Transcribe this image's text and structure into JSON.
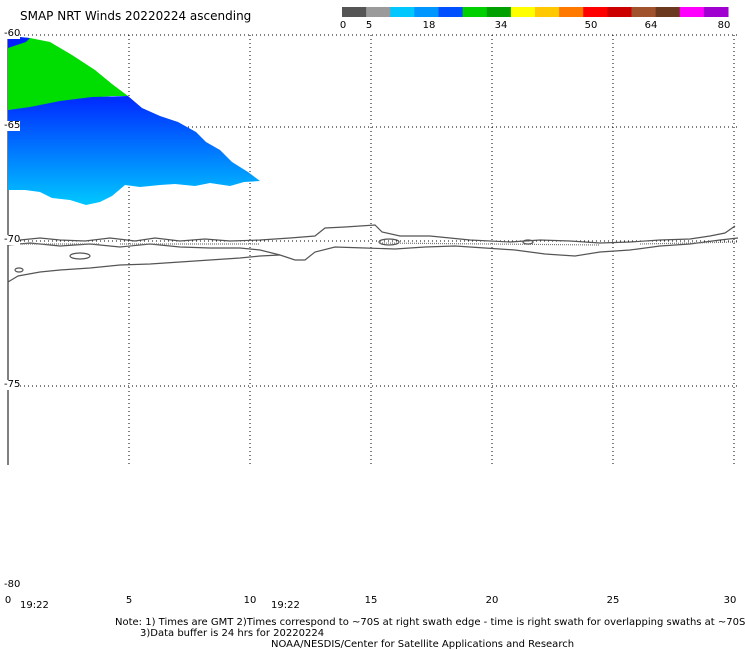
{
  "title": "SMAP NRT Winds 20220224 ascending",
  "color_scale": {
    "ticks": [
      "0",
      "5",
      "18",
      "34",
      "50",
      "64",
      "80"
    ],
    "colors": [
      "#555555",
      "#9a9a9a",
      "#00c8ff",
      "#0096ff",
      "#0050ff",
      "#00d000",
      "#00a000",
      "#ffff00",
      "#ffc800",
      "#ff7800",
      "#ff0000",
      "#cc0000",
      "#a0522d",
      "#6b3a1e",
      "#ff00ff",
      "#a000d0"
    ]
  },
  "map": {
    "lat_labels": [
      "-60",
      "-65",
      "-70",
      "-75",
      "-80"
    ],
    "lon_labels": [
      "0",
      "5",
      "10",
      "15",
      "20",
      "25",
      "30"
    ],
    "swath_times": [
      "19:22",
      "19:22"
    ],
    "swath_colors": {
      "green": "#00dd00",
      "blue": "#0020ff",
      "light_blue": "#00b8ff"
    }
  },
  "notes": {
    "line1": "Note: 1) Times are GMT 2)Times correspond to ~70S at right swath edge - time is right swath for overlapping swaths at ~70S",
    "line2": "3)Data buffer is 24 hrs for 20220224",
    "line3": "NOAA/NESDIS/Center for Satellite Applications and Research"
  }
}
